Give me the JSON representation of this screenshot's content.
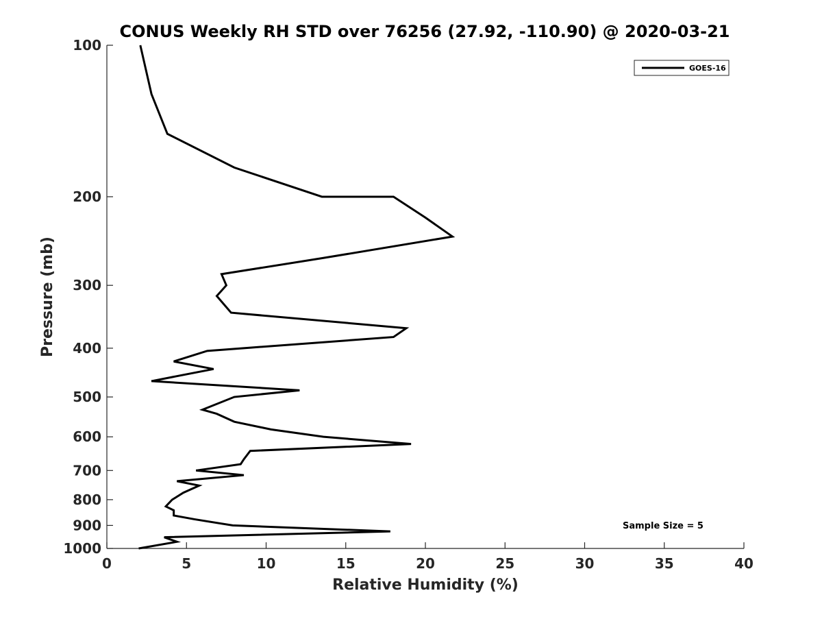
{
  "chart_data": {
    "type": "line",
    "title": "CONUS Weekly RH STD over 76256 (27.92, -110.90) @ 2020-03-21",
    "xlabel": "Relative Humidity (%)",
    "ylabel": "Pressure (mb)",
    "xlim": [
      0,
      40
    ],
    "ylim": [
      1000,
      100
    ],
    "y_scale": "log",
    "x_ticks": [
      0,
      5,
      10,
      15,
      20,
      25,
      30,
      35,
      40
    ],
    "y_ticks": [
      100,
      200,
      300,
      400,
      500,
      600,
      700,
      800,
      900,
      1000
    ],
    "grid": false,
    "legend_position": "top-right",
    "annotation": "Sample Size = 5",
    "series": [
      {
        "name": "GOES-16",
        "color": "#000000",
        "points": [
          [
            2.1,
            100
          ],
          [
            2.8,
            125
          ],
          [
            3.8,
            150
          ],
          [
            8.0,
            175
          ],
          [
            13.5,
            200
          ],
          [
            18.0,
            200
          ],
          [
            20.0,
            220
          ],
          [
            21.7,
            240
          ],
          [
            13.5,
            265
          ],
          [
            7.2,
            285
          ],
          [
            7.5,
            300
          ],
          [
            6.9,
            315
          ],
          [
            7.8,
            340
          ],
          [
            18.8,
            365
          ],
          [
            18.0,
            380
          ],
          [
            6.3,
            405
          ],
          [
            4.2,
            425
          ],
          [
            6.7,
            440
          ],
          [
            2.8,
            465
          ],
          [
            12.1,
            485
          ],
          [
            8.0,
            500
          ],
          [
            6.0,
            530
          ],
          [
            6.9,
            540
          ],
          [
            8.0,
            560
          ],
          [
            10.3,
            580
          ],
          [
            13.6,
            600
          ],
          [
            19.1,
            620
          ],
          [
            9.0,
            640
          ],
          [
            8.6,
            665
          ],
          [
            8.4,
            680
          ],
          [
            5.6,
            700
          ],
          [
            8.6,
            715
          ],
          [
            4.4,
            735
          ],
          [
            5.8,
            750
          ],
          [
            4.8,
            775
          ],
          [
            4.1,
            800
          ],
          [
            3.7,
            825
          ],
          [
            4.2,
            840
          ],
          [
            4.2,
            860
          ],
          [
            5.5,
            875
          ],
          [
            7.9,
            900
          ],
          [
            17.8,
            925
          ],
          [
            3.6,
            950
          ],
          [
            4.4,
            970
          ],
          [
            2.0,
            1000
          ]
        ]
      }
    ]
  }
}
